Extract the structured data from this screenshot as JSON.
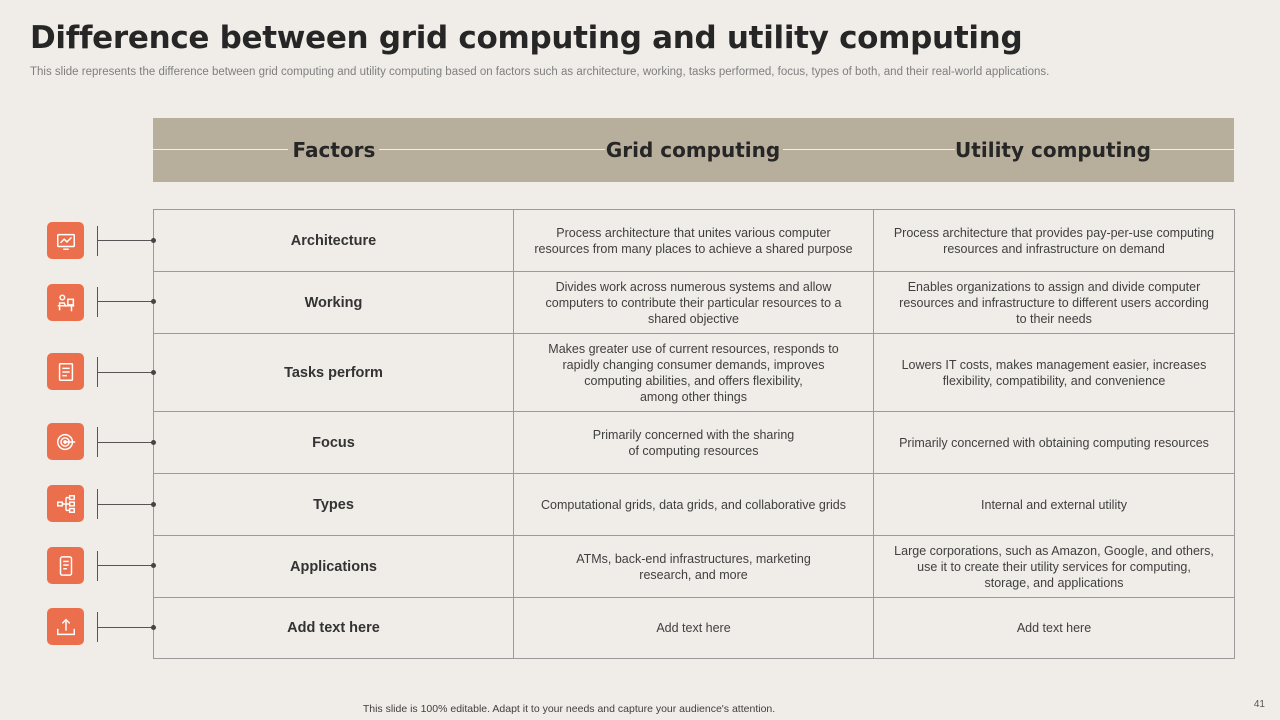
{
  "slide": {
    "title": "Difference between grid computing and utility computing",
    "subtitle": "This slide represents the difference between grid computing and utility computing based on factors such as architecture, working, tasks performed, focus, types of both, and their real-world applications.",
    "footer": "This slide is 100% editable. Adapt it to your needs and capture your audience's attention.",
    "page_number": "41",
    "accent_color": "#ec6f4d",
    "header_color": "#b8ae9c"
  },
  "table": {
    "headers": [
      "Factors",
      "Grid computing",
      "Utility computing"
    ],
    "rows": [
      {
        "factor": "Architecture",
        "icon": "architecture-chart-icon",
        "grid": "Process architecture that unites various  computer\nresources from many places to achieve  a shared purpose",
        "utility": "Process architecture that provides  pay-per-use  computing\nresources and infrastructure  on demand"
      },
      {
        "factor": "Working",
        "icon": "person-at-desk-icon",
        "grid": "Divides work across numerous systems and allow\ncomputers to contribute their particular resources to a\nshared objective",
        "utility": "Enables organizations to assign and divide  computer\nresources and infrastructure to different  users according\nto their needs"
      },
      {
        "factor": "Tasks perform",
        "icon": "task-document-icon",
        "grid": "Makes greater use of current resources, responds to\nrapidly changing consumer demands, improves\ncomputing abilities, and offers flexibility,\namong other things",
        "utility": "Lowers IT costs, makes management easier, increases\nflexibility, compatibility, and convenience"
      },
      {
        "factor": "Focus",
        "icon": "target-icon",
        "grid": "Primarily concerned with the sharing\nof computing resources",
        "utility": "Primarily concerned with obtaining computing resources"
      },
      {
        "factor": "Types",
        "icon": "hierarchy-icon",
        "grid": "Computational grids, data grids, and collaborative  grids",
        "utility": "Internal  and external utility"
      },
      {
        "factor": "Applications",
        "icon": "mobile-app-icon",
        "grid": "ATMs, back-end infrastructures,  marketing\nresearch,  and more",
        "utility": "Large corporations,  such as Amazon, Google, and others,\nuse it to create their utility services for computing,\nstorage, and applications"
      },
      {
        "factor": "Add  text here",
        "icon": "upload-tray-icon",
        "grid": "Add text here",
        "utility": "Add text here"
      }
    ]
  }
}
